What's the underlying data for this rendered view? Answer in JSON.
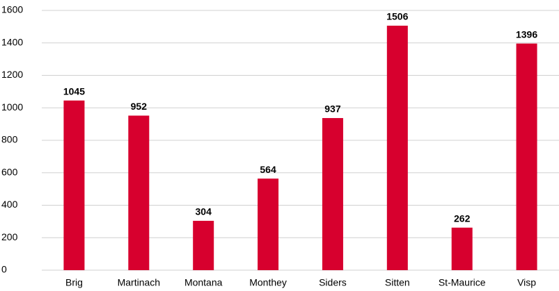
{
  "chart_data": {
    "type": "bar",
    "categories": [
      "Brig",
      "Martinach",
      "Montana",
      "Monthey",
      "Siders",
      "Sitten",
      "St-Maurice",
      "Visp"
    ],
    "values": [
      1045,
      952,
      304,
      564,
      937,
      1506,
      262,
      1396
    ],
    "color": "#d7002e",
    "ylim": [
      0,
      1600
    ],
    "yticks": [
      0,
      200,
      400,
      600,
      800,
      1000,
      1200,
      1400,
      1600
    ],
    "grid": true
  }
}
